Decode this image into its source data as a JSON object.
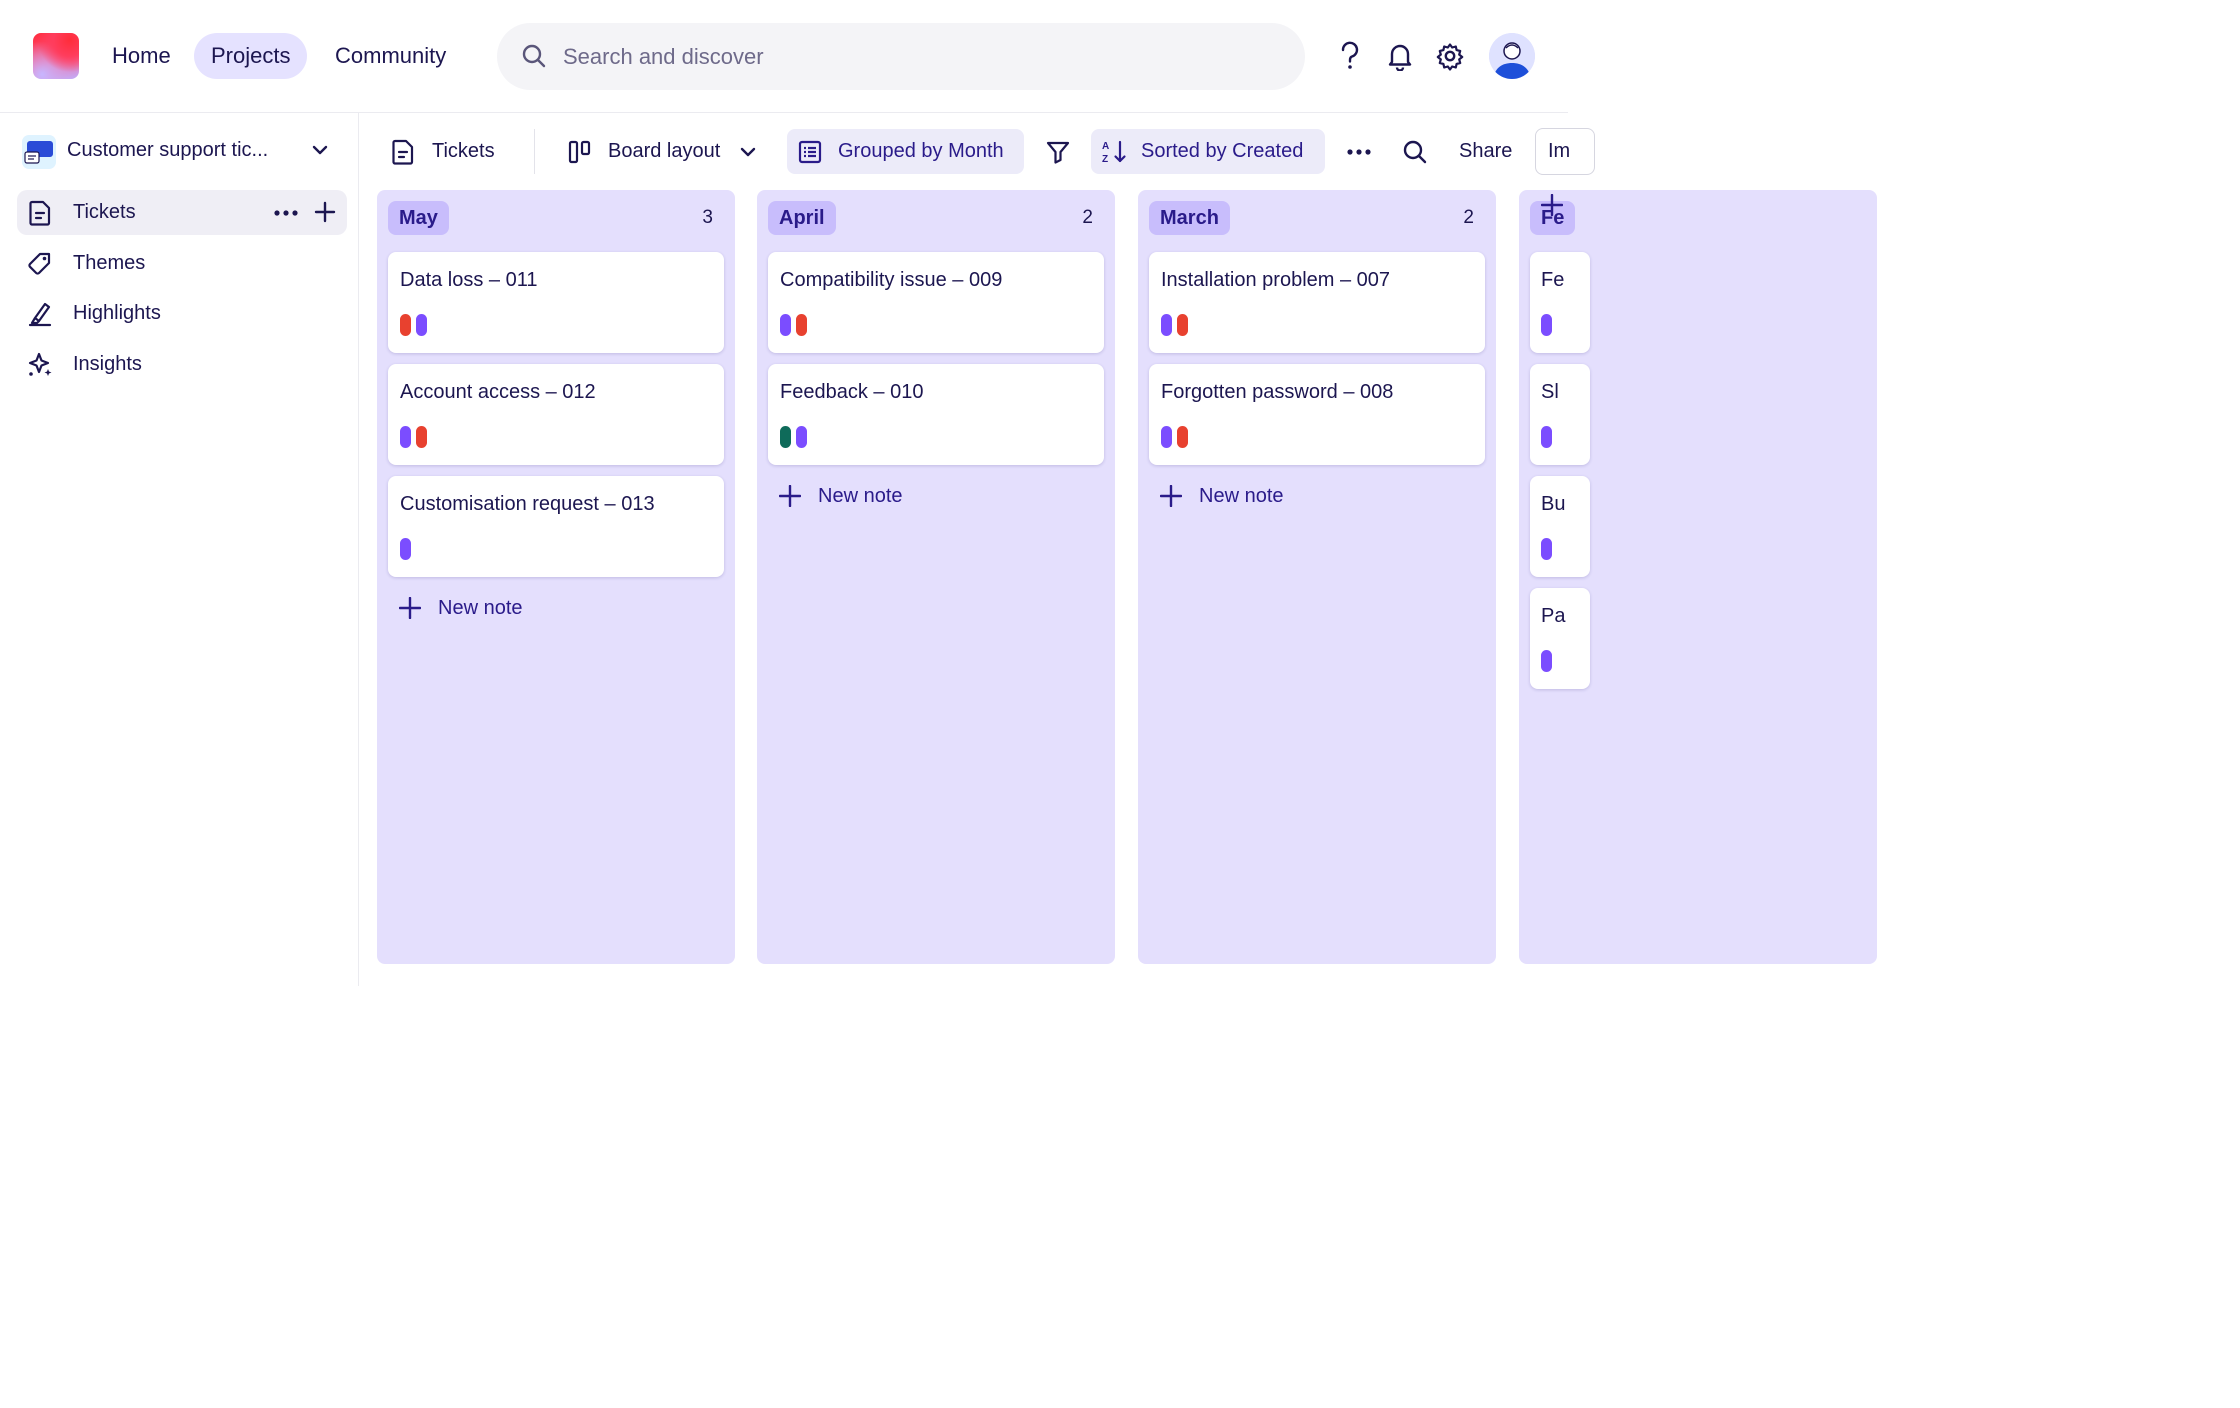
{
  "nav": {
    "items": [
      {
        "label": "Home",
        "active": false
      },
      {
        "label": "Projects",
        "active": true
      },
      {
        "label": "Community",
        "active": false
      }
    ],
    "search_placeholder": "Search and discover",
    "icons": [
      "help-icon",
      "bell-icon",
      "gear-icon",
      "avatar"
    ]
  },
  "sidebar": {
    "project_name": "Customer support tic...",
    "items": [
      {
        "label": "Tickets",
        "icon": "document-icon",
        "active": true
      },
      {
        "label": "Themes",
        "icon": "tag-icon",
        "active": false
      },
      {
        "label": "Highlights",
        "icon": "highlighter-icon",
        "active": false
      },
      {
        "label": "Insights",
        "icon": "sparkle-icon",
        "active": false
      }
    ]
  },
  "toolbar": {
    "tickets_label": "Tickets",
    "layout_label": "Board layout",
    "group_label": "Grouped by Month",
    "sort_label": "Sorted by Created",
    "share_label": "Share",
    "import_label": "Im"
  },
  "colors": {
    "accent": "#2a1b8a",
    "column_bg": "#e4dffd",
    "column_title_bg": "#c8bdfc",
    "tag_purple": "#7b4dff",
    "tag_red": "#e8412f",
    "tag_green": "#0f6b5a"
  },
  "board": {
    "new_note_label": "New note",
    "columns": [
      {
        "title": "May",
        "count": "3",
        "cards": [
          {
            "title": "Data loss – 011",
            "tags": [
              "red",
              "purple"
            ]
          },
          {
            "title": "Account access – 012",
            "tags": [
              "purple",
              "red"
            ]
          },
          {
            "title": "Customisation request – 013",
            "tags": [
              "purple"
            ]
          }
        ]
      },
      {
        "title": "April",
        "count": "2",
        "cards": [
          {
            "title": "Compatibility issue – 009",
            "tags": [
              "purple",
              "red"
            ]
          },
          {
            "title": "Feedback – 010",
            "tags": [
              "green",
              "purple"
            ]
          }
        ]
      },
      {
        "title": "March",
        "count": "2",
        "cards": [
          {
            "title": "Installation problem – 007",
            "tags": [
              "purple",
              "red"
            ]
          },
          {
            "title": "Forgotten password – 008",
            "tags": [
              "purple",
              "red"
            ]
          }
        ]
      },
      {
        "title": "Fe",
        "count": "",
        "cards": [
          {
            "title": "Fe",
            "tags": [
              "purple"
            ]
          },
          {
            "title": "Sl",
            "tags": [
              "purple"
            ]
          },
          {
            "title": "Bu",
            "tags": [
              "purple"
            ]
          },
          {
            "title": "Pa",
            "tags": [
              "purple"
            ]
          }
        ]
      }
    ]
  }
}
